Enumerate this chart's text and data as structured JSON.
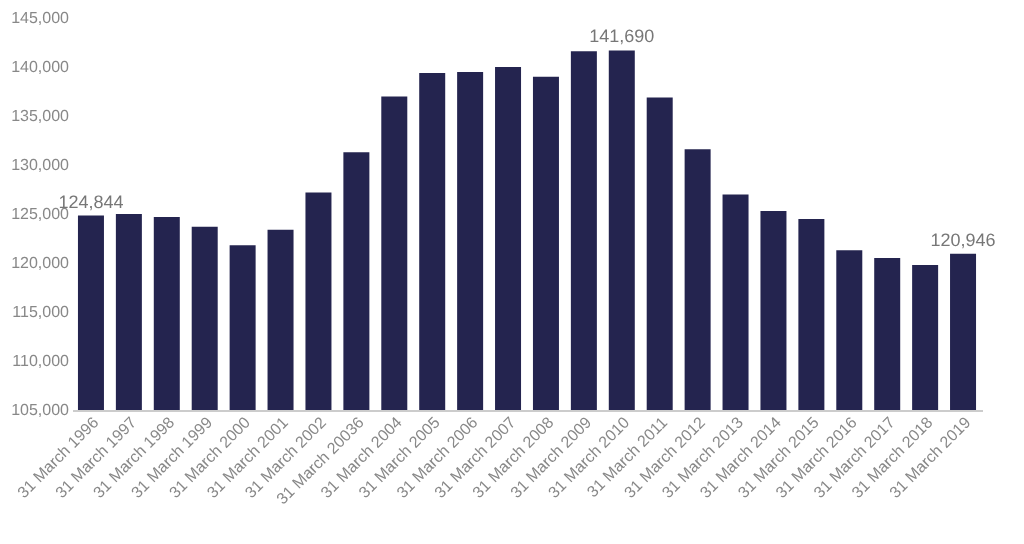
{
  "chart_data": {
    "type": "bar",
    "categories": [
      "31 March 1996",
      "31 March 1997",
      "31 March 1998",
      "31 March 1999",
      "31 March 2000",
      "31 March 2001",
      "31 March 2002",
      "31 March 20036",
      "31 March 2004",
      "31 March 2005",
      "31 March 2006",
      "31 March 2007",
      "31 March 2008",
      "31 March 2009",
      "31 March 2010",
      "31 March 2011",
      "31 March 2012",
      "31 March 2013",
      "31 March 2014",
      "31 March 2015",
      "31 March 2016",
      "31 March 2017",
      "31 March 2018",
      "31 March 2019"
    ],
    "values": [
      124844,
      125000,
      124700,
      123700,
      121800,
      123400,
      127200,
      131300,
      137000,
      139400,
      139500,
      140000,
      139000,
      141600,
      141690,
      136900,
      131600,
      127000,
      125300,
      124500,
      121300,
      120500,
      119800,
      120946
    ],
    "value_labels": [
      "124,844",
      null,
      null,
      null,
      null,
      null,
      null,
      null,
      null,
      null,
      null,
      null,
      null,
      null,
      "141,690",
      null,
      null,
      null,
      null,
      null,
      null,
      null,
      null,
      "120,946"
    ],
    "color": "#24244f",
    "ylim": [
      105000,
      145000
    ],
    "yticks": [
      {
        "value": 105000,
        "label": "105,000"
      },
      {
        "value": 110000,
        "label": "110,000"
      },
      {
        "value": 115000,
        "label": "115,000"
      },
      {
        "value": 120000,
        "label": "120,000"
      },
      {
        "value": 125000,
        "label": "125,000"
      },
      {
        "value": 130000,
        "label": "130,000"
      },
      {
        "value": 135000,
        "label": "135,000"
      },
      {
        "value": 140000,
        "label": "140,000"
      },
      {
        "value": 145000,
        "label": "145,000"
      }
    ],
    "grid": false
  }
}
